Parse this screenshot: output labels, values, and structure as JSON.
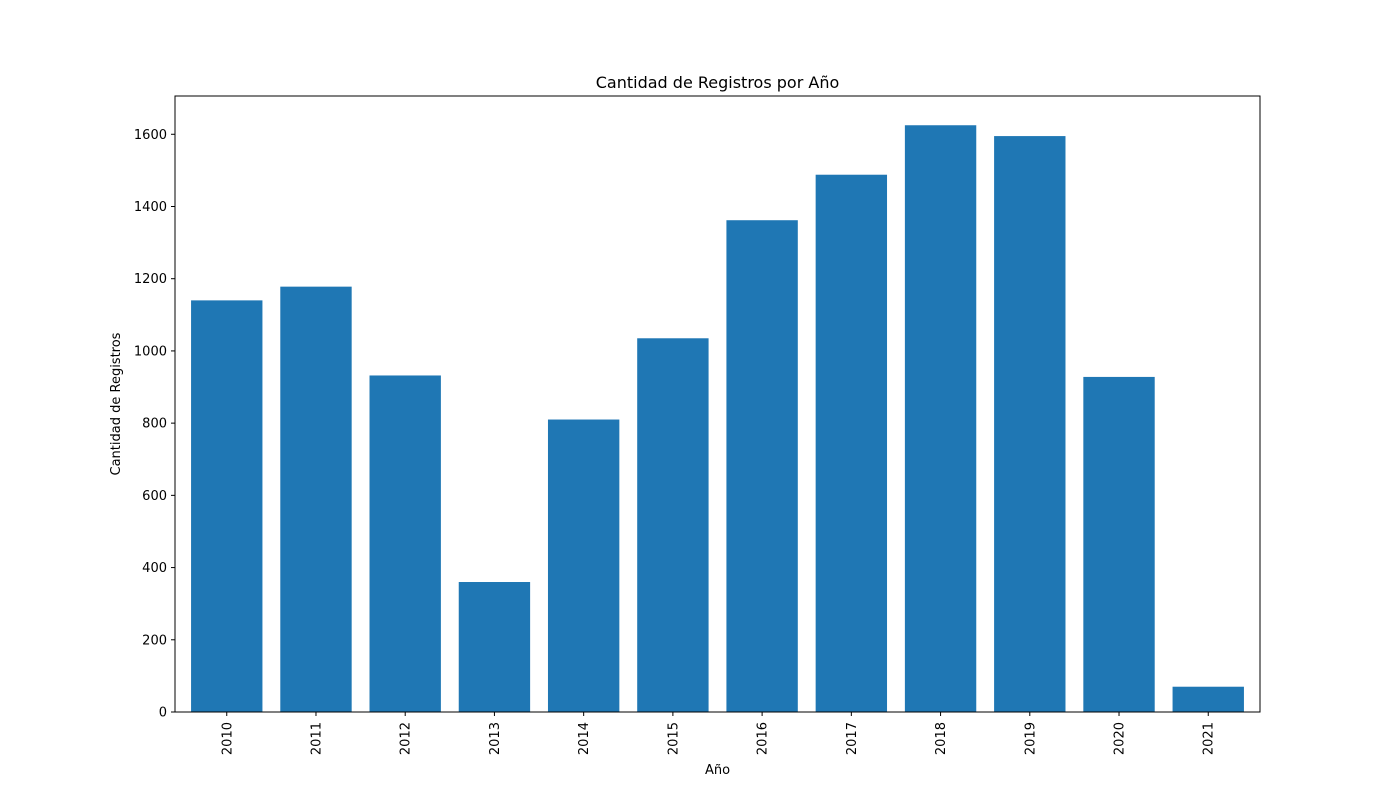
{
  "chart_data": {
    "type": "bar",
    "title": "Cantidad de Registros por Año",
    "xlabel": "Año",
    "ylabel": "Cantidad de Registros",
    "categories": [
      "2010",
      "2011",
      "2012",
      "2013",
      "2014",
      "2015",
      "2016",
      "2017",
      "2018",
      "2019",
      "2020",
      "2021"
    ],
    "values": [
      1140,
      1178,
      932,
      360,
      810,
      1035,
      1362,
      1488,
      1625,
      1595,
      928,
      70
    ],
    "ylim": [
      0,
      1706
    ],
    "yticks": [
      0,
      200,
      400,
      600,
      800,
      1000,
      1200,
      1400,
      1600
    ],
    "ytick_labels": [
      "0",
      "200",
      "400",
      "600",
      "800",
      "1000",
      "1200",
      "1400",
      "1600"
    ],
    "bar_color": "#1f77b4",
    "grid": false,
    "xtick_rotation": "vertical"
  }
}
